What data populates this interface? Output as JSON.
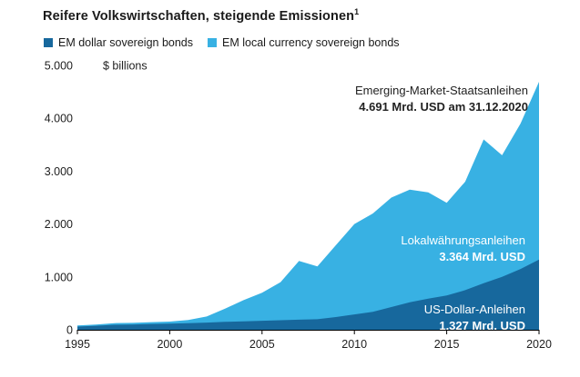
{
  "header": {
    "title": "Reifere Volkswirtschaften, steigende Emissionen",
    "footnote_marker": "1"
  },
  "legend": {
    "items": [
      {
        "label": "EM dollar sovereign bonds",
        "color": "#17689d"
      },
      {
        "label": "EM local currency sovereign bonds",
        "color": "#38b1e3"
      }
    ]
  },
  "axis": {
    "y_unit_label": "$ billions",
    "y_ticks": [
      "5.000",
      "4.000",
      "3.000",
      "2.000",
      "1.000",
      "0"
    ],
    "y_tick_values": [
      5000,
      4000,
      3000,
      2000,
      1000,
      0
    ],
    "x_ticks": [
      "1995",
      "2000",
      "2005",
      "2010",
      "2015",
      "2020"
    ],
    "x_tick_values": [
      1995,
      2000,
      2005,
      2010,
      2015,
      2020
    ]
  },
  "annotations": {
    "total": {
      "line1": "Emerging-Market-Staatsanleihen",
      "line2": "4.691 Mrd. USD am 31.12.2020"
    },
    "local": {
      "line1": "Lokalwährungsanleihen",
      "line2": "3.364 Mrd. USD"
    },
    "dollar": {
      "line1": "US-Dollar-Anleihen",
      "line2": "1.327 Mrd. USD"
    }
  },
  "chart_data": {
    "type": "area",
    "stacked": true,
    "title": "Reifere Volkswirtschaften, steigende Emissionen",
    "ylabel": "$ billions",
    "ylim": [
      0,
      5000
    ],
    "grid": false,
    "legend_position": "top-left",
    "x": [
      1995,
      1996,
      1997,
      1998,
      1999,
      2000,
      2001,
      2002,
      2003,
      2004,
      2005,
      2006,
      2007,
      2008,
      2009,
      2010,
      2011,
      2012,
      2013,
      2014,
      2015,
      2016,
      2017,
      2018,
      2019,
      2020
    ],
    "series": [
      {
        "name": "EM dollar sovereign bonds",
        "color": "#17689d",
        "values": [
          60,
          75,
          95,
          100,
          110,
          115,
          125,
          135,
          150,
          160,
          170,
          180,
          190,
          200,
          240,
          290,
          340,
          430,
          520,
          590,
          650,
          750,
          880,
          1000,
          1150,
          1327
        ]
      },
      {
        "name": "EM local currency sovereign bonds",
        "color": "#38b1e3",
        "values": [
          20,
          25,
          30,
          30,
          35,
          40,
          60,
          115,
          250,
          400,
          530,
          720,
          1110,
          1000,
          1360,
          1710,
          1860,
          2070,
          2130,
          2010,
          1750,
          2050,
          2720,
          2300,
          2750,
          3364
        ]
      }
    ],
    "callouts": {
      "total_2020": 4691,
      "local_2020": 3364,
      "dollar_2020": 1327
    }
  }
}
